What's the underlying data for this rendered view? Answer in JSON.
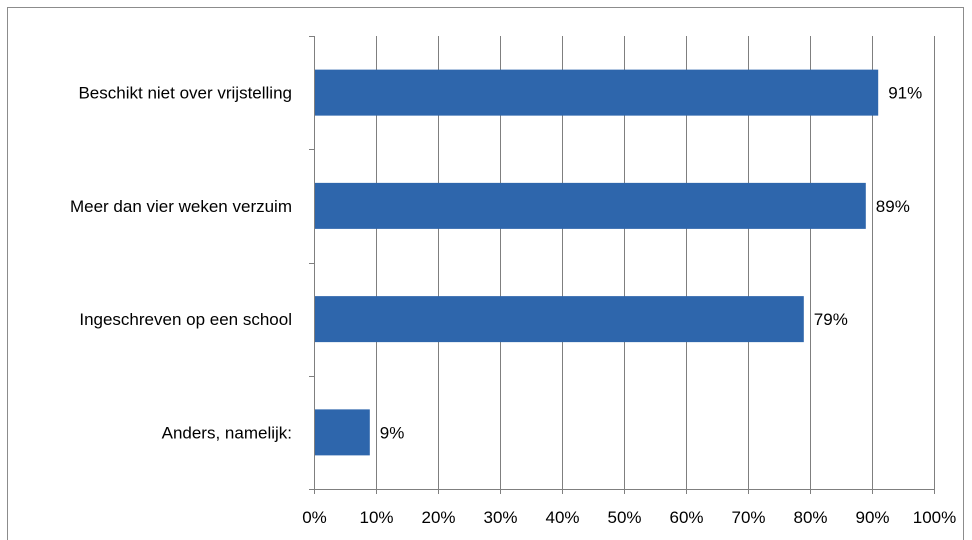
{
  "chart_data": {
    "type": "bar",
    "orientation": "horizontal",
    "categories": [
      "Beschikt niet over vrijstelling",
      "Meer dan vier weken verzuim",
      "Ingeschreven op een school",
      "Anders, namelijk:"
    ],
    "values": [
      91,
      89,
      79,
      9
    ],
    "data_labels": [
      "91%",
      "89%",
      "79%",
      "9%"
    ],
    "xlim": [
      0,
      100
    ],
    "x_ticks": [
      0,
      10,
      20,
      30,
      40,
      50,
      60,
      70,
      80,
      90,
      100
    ],
    "x_tick_labels": [
      "0%",
      "10%",
      "20%",
      "30%",
      "40%",
      "50%",
      "60%",
      "70%",
      "80%",
      "90%",
      "100%"
    ],
    "grid": "vertical",
    "legend": "none",
    "colors": {
      "bar": "#2e66ac",
      "grid": "#7f7f7f",
      "axis": "#7f7f7f",
      "frame": "#8c8c8c"
    }
  }
}
